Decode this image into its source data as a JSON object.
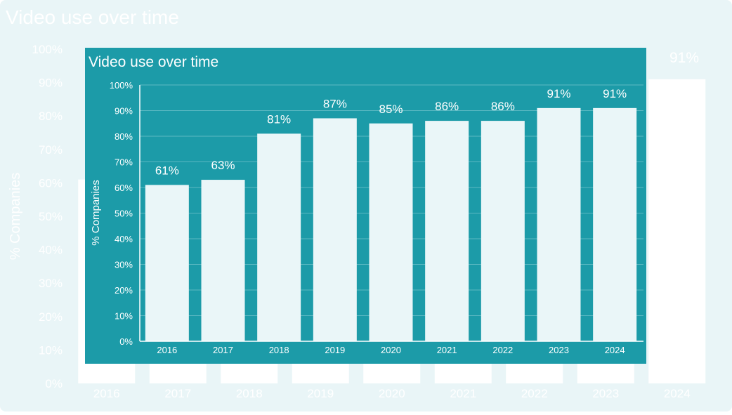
{
  "colors": {
    "background": "#e9f5f7",
    "panel": "#1c9ba8",
    "bar": "#eaf6f8",
    "bar_back": "#ffffff",
    "text_light": "#ffffff",
    "grid": "#5bb8c2"
  },
  "back_chart": {
    "title": "Video use over time",
    "ylabel": "% Companies",
    "yticks": [
      "0%",
      "10%",
      "20%",
      "30%",
      "40%",
      "50%",
      "60%",
      "70%",
      "80%",
      "90%",
      "100%"
    ],
    "visible_label": "91%"
  },
  "chart_data": {
    "type": "bar",
    "title": "Video use over time",
    "xlabel": "",
    "ylabel": "% Companies",
    "categories": [
      "2016",
      "2017",
      "2018",
      "2019",
      "2020",
      "2021",
      "2022",
      "2023",
      "2024"
    ],
    "values": [
      61,
      63,
      81,
      87,
      85,
      86,
      86,
      91,
      91
    ],
    "value_labels": [
      "61%",
      "63%",
      "81%",
      "87%",
      "85%",
      "86%",
      "86%",
      "91%",
      "91%"
    ],
    "ylim": [
      0,
      100
    ],
    "yticks": [
      "0%",
      "10%",
      "20%",
      "30%",
      "40%",
      "50%",
      "60%",
      "70%",
      "80%",
      "90%",
      "100%"
    ],
    "grid": true,
    "legend": "none"
  }
}
